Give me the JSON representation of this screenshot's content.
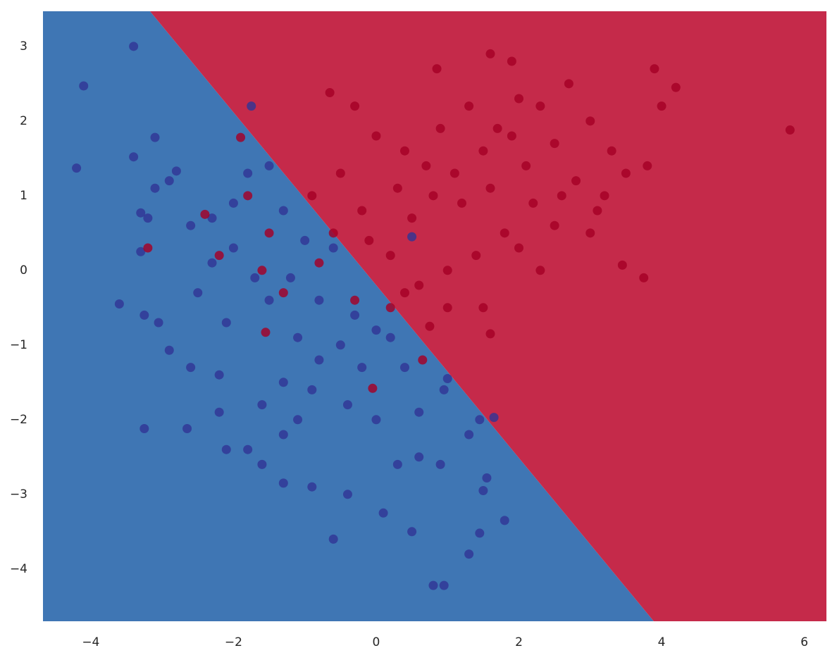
{
  "chart_data": {
    "type": "scatter",
    "xlim": [
      -4.67,
      6.31
    ],
    "ylim": [
      -4.7,
      3.47
    ],
    "xticks": [
      {
        "value": -4,
        "label": "−4"
      },
      {
        "value": -2,
        "label": "−2"
      },
      0,
      2,
      4,
      6
    ],
    "yticks": [
      {
        "value": -4,
        "label": "−4"
      },
      {
        "value": -3,
        "label": "−3"
      },
      {
        "value": -2,
        "label": "−2"
      },
      {
        "value": -1,
        "label": "−1"
      },
      0,
      1,
      2,
      3
    ],
    "regions": {
      "boundary": {
        "x": [
          -3.17,
          3.89
        ],
        "y": [
          3.47,
          -4.7
        ]
      },
      "colors": [
        "#3f76b4",
        "#c52a4a"
      ]
    },
    "series": [
      {
        "color": "#313695",
        "x": [
          -3.4,
          -4.1,
          -4.2,
          -3.4,
          -3.1,
          -1.75,
          -3.1,
          -2.9,
          -2.8,
          -3.3,
          -3.2,
          -3.3,
          -2.6,
          -2.3,
          -2.0,
          -1.8,
          -1.5,
          -1.3,
          -1.0,
          -0.6,
          -3.6,
          -3.25,
          -3.05,
          -2.9,
          -3.25,
          -2.65,
          -2.6,
          -2.5,
          -2.1,
          -2.2,
          -2.1,
          -2.2,
          -1.8,
          -1.6,
          -1.3,
          -1.3,
          -0.9,
          -0.4,
          -0.6,
          0.1,
          0.5,
          0.8,
          0.95,
          1.3,
          1.45,
          1.8,
          1.5,
          1.55,
          1.3,
          1.45,
          1.65,
          1.0,
          0.95,
          0.6,
          0.4,
          0.2,
          0.0,
          -0.3,
          -0.5,
          -0.8,
          -1.1,
          -1.3,
          -1.5,
          -1.7,
          -2.0,
          -2.3,
          -0.9,
          -0.4,
          0.0,
          0.3,
          0.9,
          -0.8,
          -1.2,
          -0.2,
          0.6,
          -1.6,
          -1.1,
          0.5
        ],
        "y": [
          3.0,
          2.47,
          1.37,
          1.52,
          1.78,
          2.2,
          1.1,
          1.2,
          1.33,
          0.77,
          0.7,
          0.25,
          0.6,
          0.7,
          0.9,
          1.3,
          1.4,
          0.8,
          0.4,
          0.3,
          -0.45,
          -0.6,
          -0.7,
          -1.07,
          -2.12,
          -2.12,
          -1.3,
          -0.3,
          -0.7,
          -1.4,
          -2.4,
          -1.9,
          -2.4,
          -2.6,
          -2.85,
          -2.2,
          -2.9,
          -3.0,
          -3.6,
          -3.25,
          -3.5,
          -4.22,
          -4.22,
          -3.8,
          -3.52,
          -3.35,
          -2.95,
          -2.78,
          -2.2,
          -2.0,
          -1.97,
          -1.45,
          -1.6,
          -1.9,
          -1.3,
          -0.9,
          -0.8,
          -0.6,
          -1.0,
          -1.2,
          -0.9,
          -1.5,
          -0.4,
          -0.1,
          0.3,
          0.1,
          -1.6,
          -1.8,
          -2.0,
          -2.6,
          -2.6,
          -0.4,
          -0.1,
          -1.3,
          -2.5,
          -1.8,
          -2.0,
          0.45
        ]
      },
      {
        "color": "#a50026",
        "x": [
          5.8,
          4.2,
          4.0,
          3.9,
          3.75,
          3.45,
          1.6,
          1.9,
          0.85,
          -0.65,
          -1.9,
          -1.8,
          -1.5,
          -1.6,
          -1.55,
          -1.3,
          -3.2,
          -2.4,
          -2.2,
          0.65,
          -0.05,
          0.75,
          1.6,
          1.5,
          2.0,
          2.5,
          3.0,
          3.2,
          3.5,
          3.8,
          3.0,
          2.7,
          2.3,
          1.9,
          1.5,
          1.1,
          0.8,
          0.5,
          0.2,
          0.0,
          -0.3,
          0.4,
          0.7,
          1.2,
          1.6,
          2.1,
          2.5,
          2.8,
          3.1,
          1.4,
          1.0,
          0.6,
          0.2,
          -0.3,
          -0.8,
          -0.6,
          -0.2,
          0.3,
          -0.5,
          -0.9,
          1.8,
          2.2,
          2.6,
          3.3,
          1.3,
          0.9,
          2.0,
          1.0,
          0.4,
          -0.1,
          1.7,
          2.3
        ],
        "y": [
          1.88,
          2.45,
          2.2,
          2.7,
          -0.1,
          0.07,
          2.9,
          2.8,
          2.7,
          2.38,
          1.78,
          1.0,
          0.5,
          0.0,
          -0.83,
          -0.3,
          0.3,
          0.75,
          0.2,
          -1.2,
          -1.58,
          -0.75,
          -0.85,
          -0.5,
          0.3,
          0.6,
          0.5,
          1.0,
          1.3,
          1.4,
          2.0,
          2.5,
          2.2,
          1.8,
          1.6,
          1.3,
          1.0,
          0.7,
          0.2,
          1.8,
          2.2,
          1.6,
          1.4,
          0.9,
          1.1,
          1.4,
          1.7,
          1.2,
          0.8,
          0.2,
          0.0,
          -0.2,
          -0.5,
          -0.4,
          0.1,
          0.5,
          0.8,
          1.1,
          1.3,
          1.0,
          0.5,
          0.9,
          1.0,
          1.6,
          2.2,
          1.9,
          2.3,
          -0.5,
          -0.3,
          0.4,
          1.9,
          0.0
        ]
      }
    ]
  }
}
